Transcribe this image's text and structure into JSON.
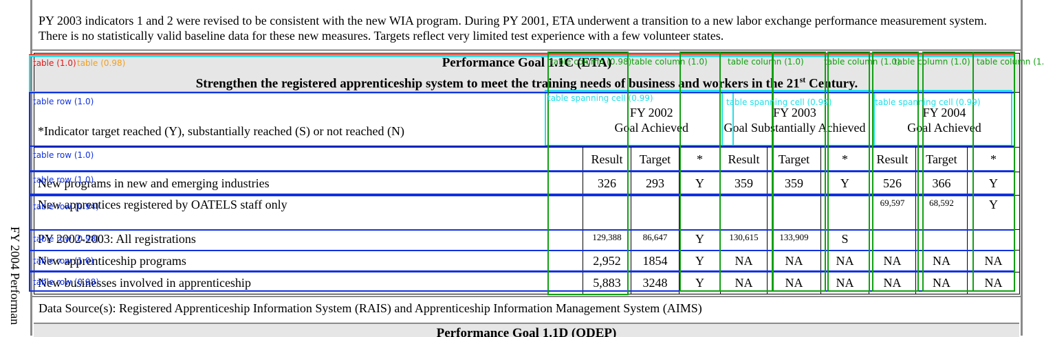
{
  "side_text": "FY 2004 Performan",
  "note": "PY 2003 indicators 1 and 2 were revised to be consistent with the new WIA program. During PY 2001, ETA underwent a transition to a new labor exchange performance measurement system. There is no statistically valid baseline data for these new measures. Targets reflect very limited test experience with a few volunteer states.",
  "goal": {
    "title": "Performance Goal 1.1C (ETA)",
    "subtitle_main": "Strengthen the registered apprenticeship system to meet the training needs of business and workers in the 21",
    "subtitle_sup": "st",
    "subtitle_end": " Century."
  },
  "legend": "*Indicator target reached (Y), substantially reached (S) or not reached (N)",
  "fy_headers": [
    {
      "year": "FY 2002",
      "status": "Goal Achieved"
    },
    {
      "year": "FY 2003",
      "status": "Goal Substantially Achieved"
    },
    {
      "year": "FY 2004",
      "status": "Goal Achieved"
    }
  ],
  "col_headers": [
    "Result",
    "Target",
    "*",
    "Result",
    "Target",
    "*",
    "Result",
    "Target",
    "*"
  ],
  "rows": [
    {
      "label": "New programs in new and emerging industries",
      "values": [
        "326",
        "293",
        "Y",
        "359",
        "359",
        "Y",
        "526",
        "366",
        "Y"
      ],
      "small": false
    },
    {
      "label": "New apprentices registered by OATELS staff only",
      "values": [
        "",
        "",
        "",
        "",
        "",
        "",
        "69,597",
        "68,592",
        "Y"
      ],
      "small": true
    },
    {
      "label": "PY 2002-2003:  All registrations",
      "values": [
        "129,388",
        "86,647",
        "Y",
        "130,615",
        "133,909",
        "S",
        "",
        "",
        ""
      ],
      "small": true
    },
    {
      "label": "New apprenticeship programs",
      "values": [
        "2,952",
        "1854",
        "Y",
        "NA",
        "NA",
        "NA",
        "NA",
        "NA",
        "NA"
      ],
      "small": false
    },
    {
      "label": "New businesses involved in apprenticeship",
      "values": [
        "5,883",
        "3248",
        "Y",
        "NA",
        "NA",
        "NA",
        "NA",
        "NA",
        "NA"
      ],
      "small": false
    }
  ],
  "data_source": "Data Source(s):  Registered Apprenticeship Information System (RAIS) and Apprenticeship Information Management System (AIMS)",
  "next_goal_title": "Performance Goal 1.1D (ODEP)",
  "overlays": {
    "table_label": "table (1.0)",
    "table_label2": "table (0.98)",
    "col_label_a": "table column (0.98)",
    "col_label_b": "table column (1.0)",
    "row_labels": [
      "table row (1.0)",
      "table row (1.0)",
      "table row (1.0)",
      "table row (0.94)",
      "table row (0.98)",
      "table row (1.0)",
      "table row (0.98)"
    ],
    "span_labels": [
      "table spanning cell (0.99)",
      "table spanning cell (0.99)",
      "table spanning cell (0.99)"
    ],
    "colors": {
      "table": "#e01818",
      "header": "#f0a020",
      "span": "#20e0e8",
      "row": "#1030e0",
      "column": "#10a010"
    }
  }
}
